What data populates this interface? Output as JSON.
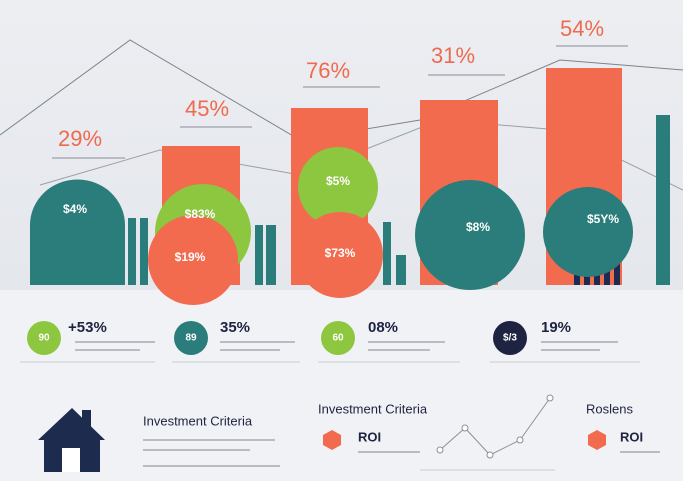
{
  "top_values": [
    "29%",
    "45%",
    "76%",
    "31%",
    "54%"
  ],
  "shape_labels": [
    "$4%",
    "$83%",
    "$19%",
    "$5%",
    "$73%",
    "$8%",
    "$5Y%"
  ],
  "stats": [
    {
      "badge": "90",
      "value": "+53%"
    },
    {
      "badge": "89",
      "value": "35%"
    },
    {
      "badge": "60",
      "value": "08%"
    },
    {
      "badge": "$/3",
      "value": "19%"
    }
  ],
  "sections": [
    {
      "title": "Investment Criteria"
    },
    {
      "title": "Investment Criteria",
      "item": "ROI"
    },
    {
      "title": "Roslens",
      "item": "ROI"
    }
  ]
}
